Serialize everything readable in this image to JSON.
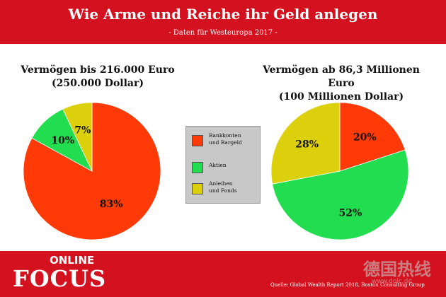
{
  "header": {
    "title": "Wie Arme und Reiche ihr Geld anlegen",
    "subtitle": "- Daten für Westeuropa 2017 -"
  },
  "chart_data": [
    {
      "type": "pie",
      "title_line1": "Vermögen bis 216.000 Euro",
      "title_line2": "(250.000 Dollar)",
      "slices": [
        {
          "name": "Bankkonten und Bargeld",
          "value": 83,
          "label": "83%",
          "color": "#ff3a06"
        },
        {
          "name": "Aktien",
          "value": 10,
          "label": "10%",
          "color": "#22dd4f"
        },
        {
          "name": "Anleihen und Fonds",
          "value": 7,
          "label": "7%",
          "color": "#dccf0c"
        }
      ]
    },
    {
      "type": "pie",
      "title_line1": "Vermögen ab 86,3 Millionen Euro",
      "title_line2": "(100 Millionen Dollar)",
      "slices": [
        {
          "name": "Bankkonten und Bargeld",
          "value": 20,
          "label": "20%",
          "color": "#ff3a06"
        },
        {
          "name": "Aktien",
          "value": 52,
          "label": "52%",
          "color": "#22dd4f"
        },
        {
          "name": "Anleihen und Fonds",
          "value": 28,
          "label": "28%",
          "color": "#dccf0c"
        }
      ]
    }
  ],
  "legend": {
    "items": [
      {
        "line1": "Bankkonten",
        "line2": "und Bargeld",
        "color": "#ff3a06"
      },
      {
        "line1": "Aktien",
        "line2": "",
        "color": "#22dd4f"
      },
      {
        "line1": "Anleihen",
        "line2": "und Fonds",
        "color": "#dccf0c"
      }
    ]
  },
  "footer": {
    "logo_online": "ONLINE",
    "logo_focus": "FOCUS",
    "source": "Quelle: Global Wealth Report 2018, Boston Consulting Group",
    "watermark": "德国热线",
    "watermark_url": "www.dolc.de"
  }
}
